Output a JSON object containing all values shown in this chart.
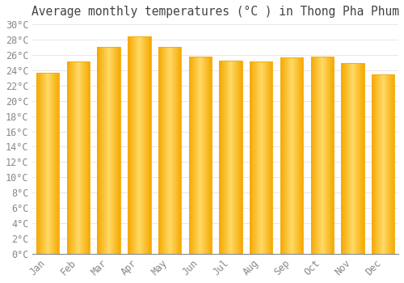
{
  "title": "Average monthly temperatures (°C ) in Thong Pha Phum",
  "months": [
    "Jan",
    "Feb",
    "Mar",
    "Apr",
    "May",
    "Jun",
    "Jul",
    "Aug",
    "Sep",
    "Oct",
    "Nov",
    "Dec"
  ],
  "values": [
    23.7,
    25.1,
    27.0,
    28.4,
    27.0,
    25.8,
    25.2,
    25.1,
    25.7,
    25.8,
    24.9,
    23.5
  ],
  "bar_color_left": "#F5A800",
  "bar_color_center": "#FFD966",
  "bar_color_right": "#F5A800",
  "background_color": "#FFFFFF",
  "plot_bg_color": "#FFFFFF",
  "grid_color": "#DDDDDD",
  "title_color": "#444444",
  "tick_color": "#888888",
  "ylim": [
    0,
    30
  ],
  "ytick_step": 2,
  "title_fontsize": 10.5,
  "tick_fontsize": 8.5
}
